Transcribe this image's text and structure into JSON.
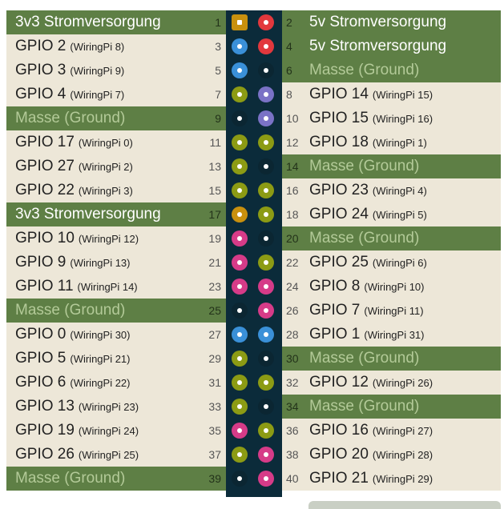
{
  "rows": [
    {
      "left": {
        "number": 1,
        "label": "3v3 Stromversorgung",
        "color": "#c8900e",
        "row": "#5e7f45",
        "text": "#ffffff"
      },
      "right": {
        "number": 2,
        "label": "5v Stromversorgung",
        "color": "#e2383d",
        "row": "#5e7f45",
        "text": "#ffffff"
      }
    },
    {
      "left": {
        "number": 3,
        "label": "GPIO 2",
        "sub": "(WiringPi 8)",
        "color": "#3a90d8",
        "row": "#ede7d8",
        "text": "#222222"
      },
      "right": {
        "number": 4,
        "label": "5v Stromversorgung",
        "color": "#e2383d",
        "row": "#5e7f45",
        "text": "#ffffff"
      }
    },
    {
      "left": {
        "number": 5,
        "label": "GPIO 3",
        "sub": "(WiringPi 9)",
        "color": "#3a90d8",
        "row": "#ede7d8",
        "text": "#222222"
      },
      "right": {
        "number": 6,
        "label": "Masse (Ground)",
        "color": "#0b2632",
        "row": "#5e7f45",
        "text": "#b3ca98"
      }
    },
    {
      "left": {
        "number": 7,
        "label": "GPIO 4",
        "sub": "(WiringPi 7)",
        "color": "#8c9b14",
        "row": "#ede7d8",
        "text": "#222222"
      },
      "right": {
        "number": 8,
        "label": "GPIO 14",
        "sub": "(WiringPi 15)",
        "color": "#7a72c6",
        "row": "#ede7d8",
        "text": "#222222"
      }
    },
    {
      "left": {
        "number": 9,
        "label": "Masse (Ground)",
        "color": "#0b2632",
        "row": "#5e7f45",
        "text": "#b3ca98"
      },
      "right": {
        "number": 10,
        "label": "GPIO 15",
        "sub": "(WiringPi 16)",
        "color": "#7a72c6",
        "row": "#ede7d8",
        "text": "#222222"
      }
    },
    {
      "left": {
        "number": 11,
        "label": "GPIO 17",
        "sub": "(WiringPi 0)",
        "color": "#8c9b14",
        "row": "#ede7d8",
        "text": "#222222"
      },
      "right": {
        "number": 12,
        "label": "GPIO 18",
        "sub": "(WiringPi 1)",
        "color": "#8c9b14",
        "row": "#ede7d8",
        "text": "#222222"
      }
    },
    {
      "left": {
        "number": 13,
        "label": "GPIO 27",
        "sub": "(WiringPi 2)",
        "color": "#8c9b14",
        "row": "#ede7d8",
        "text": "#222222"
      },
      "right": {
        "number": 14,
        "label": "Masse (Ground)",
        "color": "#0b2632",
        "row": "#5e7f45",
        "text": "#b3ca98"
      }
    },
    {
      "left": {
        "number": 15,
        "label": "GPIO 22",
        "sub": "(WiringPi 3)",
        "color": "#8c9b14",
        "row": "#ede7d8",
        "text": "#222222"
      },
      "right": {
        "number": 16,
        "label": "GPIO 23",
        "sub": "(WiringPi 4)",
        "color": "#8c9b14",
        "row": "#ede7d8",
        "text": "#222222"
      }
    },
    {
      "left": {
        "number": 17,
        "label": "3v3 Stromversorgung",
        "color": "#c8900e",
        "row": "#5e7f45",
        "text": "#ffffff"
      },
      "right": {
        "number": 18,
        "label": "GPIO 24",
        "sub": "(WiringPi 5)",
        "color": "#8c9b14",
        "row": "#ede7d8",
        "text": "#222222"
      }
    },
    {
      "left": {
        "number": 19,
        "label": "GPIO 10",
        "sub": "(WiringPi 12)",
        "color": "#d63b88",
        "row": "#ede7d8",
        "text": "#222222"
      },
      "right": {
        "number": 20,
        "label": "Masse (Ground)",
        "color": "#0b2632",
        "row": "#5e7f45",
        "text": "#b3ca98"
      }
    },
    {
      "left": {
        "number": 21,
        "label": "GPIO 9",
        "sub": "(WiringPi 13)",
        "color": "#d63b88",
        "row": "#ede7d8",
        "text": "#222222"
      },
      "right": {
        "number": 22,
        "label": "GPIO 25",
        "sub": "(WiringPi 6)",
        "color": "#8c9b14",
        "row": "#ede7d8",
        "text": "#222222"
      }
    },
    {
      "left": {
        "number": 23,
        "label": "GPIO 11",
        "sub": "(WiringPi 14)",
        "color": "#d63b88",
        "row": "#ede7d8",
        "text": "#222222"
      },
      "right": {
        "number": 24,
        "label": "GPIO 8",
        "sub": "(WiringPi 10)",
        "color": "#d63b88",
        "row": "#ede7d8",
        "text": "#222222"
      }
    },
    {
      "left": {
        "number": 25,
        "label": "Masse (Ground)",
        "color": "#0b2632",
        "row": "#5e7f45",
        "text": "#b3ca98"
      },
      "right": {
        "number": 26,
        "label": "GPIO 7",
        "sub": "(WiringPi 11)",
        "color": "#d63b88",
        "row": "#ede7d8",
        "text": "#222222"
      }
    },
    {
      "left": {
        "number": 27,
        "label": "GPIO 0",
        "sub": "(WiringPi 30)",
        "color": "#3a90d8",
        "row": "#ede7d8",
        "text": "#222222"
      },
      "right": {
        "number": 28,
        "label": "GPIO 1",
        "sub": "(WiringPi 31)",
        "color": "#3a90d8",
        "row": "#ede7d8",
        "text": "#222222"
      }
    },
    {
      "left": {
        "number": 29,
        "label": "GPIO 5",
        "sub": "(WiringPi 21)",
        "color": "#8c9b14",
        "row": "#ede7d8",
        "text": "#222222"
      },
      "right": {
        "number": 30,
        "label": "Masse (Ground)",
        "color": "#0b2632",
        "row": "#5e7f45",
        "text": "#b3ca98"
      }
    },
    {
      "left": {
        "number": 31,
        "label": "GPIO 6",
        "sub": "(WiringPi 22)",
        "color": "#8c9b14",
        "row": "#ede7d8",
        "text": "#222222"
      },
      "right": {
        "number": 32,
        "label": "GPIO 12",
        "sub": "(WiringPi 26)",
        "color": "#8c9b14",
        "row": "#ede7d8",
        "text": "#222222"
      }
    },
    {
      "left": {
        "number": 33,
        "label": "GPIO 13",
        "sub": "(WiringPi 23)",
        "color": "#8c9b14",
        "row": "#ede7d8",
        "text": "#222222"
      },
      "right": {
        "number": 34,
        "label": "Masse (Ground)",
        "color": "#0b2632",
        "row": "#5e7f45",
        "text": "#b3ca98"
      }
    },
    {
      "left": {
        "number": 35,
        "label": "GPIO 19",
        "sub": "(WiringPi 24)",
        "color": "#d63b88",
        "row": "#ede7d8",
        "text": "#222222"
      },
      "right": {
        "number": 36,
        "label": "GPIO 16",
        "sub": "(WiringPi 27)",
        "color": "#8c9b14",
        "row": "#ede7d8",
        "text": "#222222"
      }
    },
    {
      "left": {
        "number": 37,
        "label": "GPIO 26",
        "sub": "(WiringPi 25)",
        "color": "#8c9b14",
        "row": "#ede7d8",
        "text": "#222222"
      },
      "right": {
        "number": 38,
        "label": "GPIO 20",
        "sub": "(WiringPi 28)",
        "color": "#d63b88",
        "row": "#ede7d8",
        "text": "#222222"
      }
    },
    {
      "left": {
        "number": 39,
        "label": "Masse (Ground)",
        "color": "#0b2632",
        "row": "#5e7f45",
        "text": "#b3ca98"
      },
      "right": {
        "number": 40,
        "label": "GPIO 21",
        "sub": "(WiringPi 29)",
        "color": "#d63b88",
        "row": "#ede7d8",
        "text": "#222222"
      }
    }
  ]
}
